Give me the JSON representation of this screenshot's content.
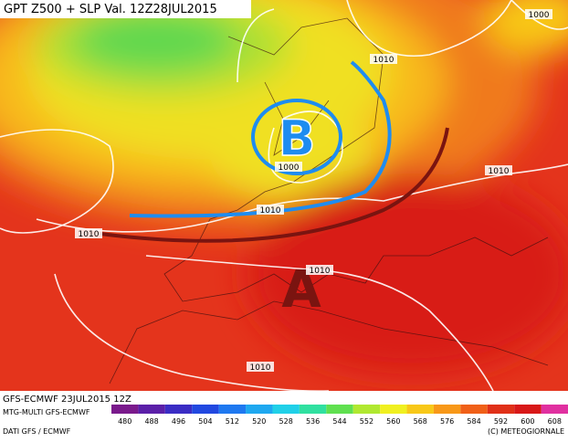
{
  "header": {
    "title": "GPT Z500 + SLP Val. 12Z28JUL2015"
  },
  "isobar_labels": [
    "1000",
    "1010",
    "1000",
    "1010",
    "1010",
    "1010",
    "1010",
    "1010"
  ],
  "pressure_centers": [
    "B",
    "A"
  ],
  "footer": {
    "run": "GFS-ECMWF 23JUL2015 12Z",
    "model": "MTG-MULTI GFS-ECMWF",
    "source": "DATI GFS / ECMWF",
    "copyright": "(C) METEOGIORNALE"
  },
  "colorbar": {
    "ticks": [
      480,
      488,
      496,
      504,
      512,
      520,
      528,
      536,
      544,
      552,
      560,
      568,
      576,
      584,
      592,
      600,
      608
    ],
    "colors": [
      "#7a1a8c",
      "#5b1fa8",
      "#3a2cc4",
      "#2148e0",
      "#1e78f0",
      "#1ea8f0",
      "#20d0e8",
      "#30e0a0",
      "#60e050",
      "#b0e830",
      "#f0f020",
      "#f8c818",
      "#f89818",
      "#f06018",
      "#e03018",
      "#d81818",
      "#e030a0"
    ]
  }
}
